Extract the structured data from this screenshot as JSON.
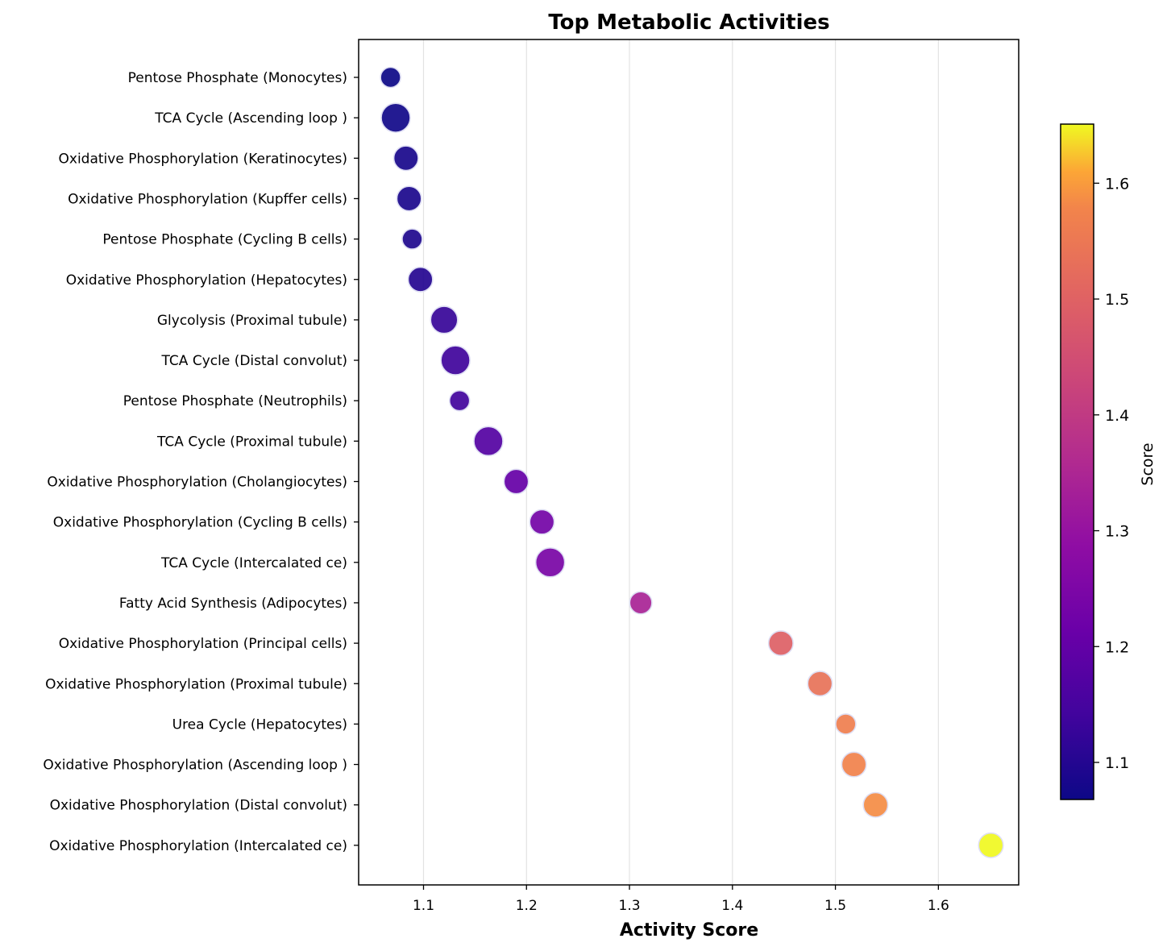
{
  "chart_data": {
    "type": "scatter",
    "title": "Top Metabolic Activities",
    "xlabel": "Activity Score",
    "ylabel": "",
    "xlim": [
      1.037,
      1.678
    ],
    "xticks": [
      1.1,
      1.2,
      1.3,
      1.4,
      1.5,
      1.6
    ],
    "xtick_labels": [
      "1.1",
      "1.2",
      "1.3",
      "1.4",
      "1.5",
      "1.6"
    ],
    "grid": "x-only",
    "colormap": "plasma",
    "colorbar": {
      "label": "Score",
      "range": [
        1.068,
        1.651
      ],
      "ticks": [
        1.1,
        1.2,
        1.3,
        1.4,
        1.5,
        1.6
      ],
      "tick_labels": [
        "1.1",
        "1.2",
        "1.3",
        "1.4",
        "1.5",
        "1.6"
      ]
    },
    "points": [
      {
        "label": "Pentose Phosphate (Monocytes)",
        "x": 1.068,
        "size": 0.45
      },
      {
        "label": "TCA Cycle (Ascending loop )",
        "x": 1.073,
        "size": 1.0
      },
      {
        "label": "Oxidative Phosphorylation (Keratinocytes)",
        "x": 1.083,
        "size": 0.72
      },
      {
        "label": "Oxidative Phosphorylation (Kupffer cells)",
        "x": 1.086,
        "size": 0.72
      },
      {
        "label": "Pentose Phosphate (Cycling B cells)",
        "x": 1.089,
        "size": 0.45
      },
      {
        "label": "Oxidative Phosphorylation (Hepatocytes)",
        "x": 1.097,
        "size": 0.72
      },
      {
        "label": "Glycolysis (Proximal tubule)",
        "x": 1.12,
        "size": 0.88
      },
      {
        "label": "TCA Cycle (Distal convolut)",
        "x": 1.131,
        "size": 1.0
      },
      {
        "label": "Pentose Phosphate (Neutrophils)",
        "x": 1.135,
        "size": 0.45
      },
      {
        "label": "TCA Cycle (Proximal tubule)",
        "x": 1.163,
        "size": 1.0
      },
      {
        "label": "Oxidative Phosphorylation (Cholangiocytes)",
        "x": 1.19,
        "size": 0.72
      },
      {
        "label": "Oxidative Phosphorylation (Cycling B cells)",
        "x": 1.215,
        "size": 0.72
      },
      {
        "label": "TCA Cycle (Intercalated ce)",
        "x": 1.223,
        "size": 1.0
      },
      {
        "label": "Fatty Acid Synthesis (Adipocytes)",
        "x": 1.311,
        "size": 0.58
      },
      {
        "label": "Oxidative Phosphorylation (Principal cells)",
        "x": 1.447,
        "size": 0.72
      },
      {
        "label": "Oxidative Phosphorylation (Proximal tubule)",
        "x": 1.485,
        "size": 0.72
      },
      {
        "label": "Urea Cycle (Hepatocytes)",
        "x": 1.51,
        "size": 0.45
      },
      {
        "label": "Oxidative Phosphorylation (Ascending loop )",
        "x": 1.518,
        "size": 0.72
      },
      {
        "label": "Oxidative Phosphorylation (Distal convolut)",
        "x": 1.539,
        "size": 0.72
      },
      {
        "label": "Oxidative Phosphorylation (Intercalated ce)",
        "x": 1.651,
        "size": 0.72
      }
    ]
  }
}
